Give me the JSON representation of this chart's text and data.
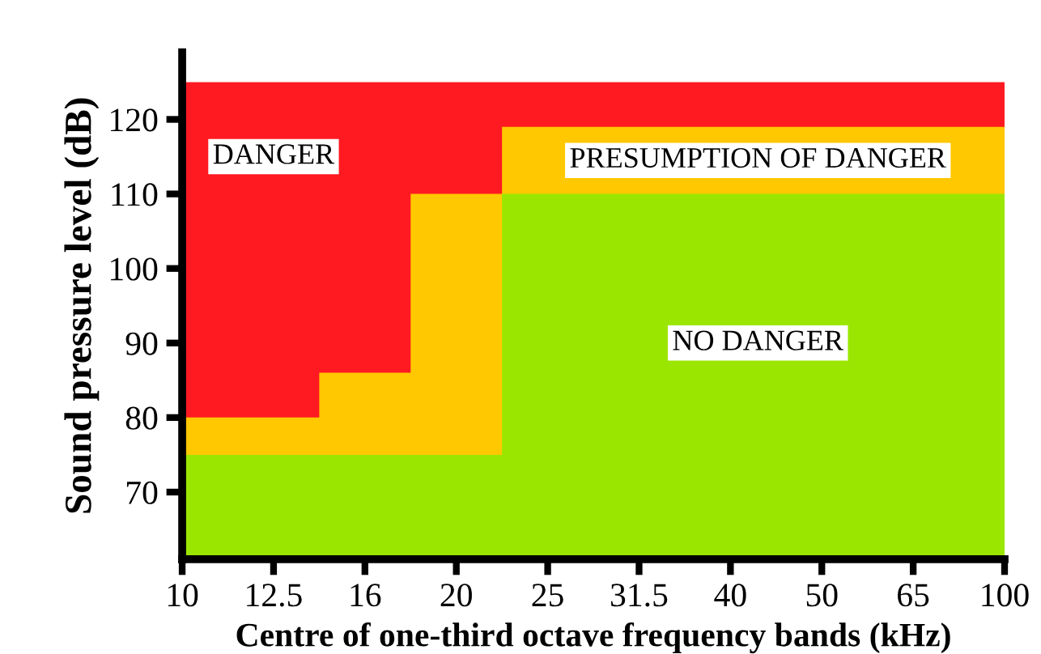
{
  "chart_data": {
    "type": "area",
    "xlabel": "Centre of one-third octave frequency bands (kHz)",
    "ylabel": "Sound pressure level (dB)",
    "categories": [
      "10",
      "12.5",
      "16",
      "20",
      "25",
      "31.5",
      "40",
      "50",
      "65",
      "100"
    ],
    "series": [
      {
        "name": "DANGER",
        "color": "#ff1a22",
        "values": [
          125,
          125,
          125,
          125,
          125,
          125,
          125,
          125,
          125,
          125
        ]
      },
      {
        "name": "PRESUMPTION OF DANGER",
        "color": "#ffc800",
        "values": [
          80,
          80,
          86,
          110,
          119,
          119,
          119,
          119,
          119,
          119
        ]
      },
      {
        "name": "NO DANGER",
        "color": "#9be600",
        "values": [
          75,
          75,
          75,
          75,
          110,
          110,
          110,
          110,
          110,
          110
        ]
      }
    ],
    "ylim": [
      61,
      129
    ],
    "yticks": [
      70,
      80,
      90,
      100,
      110,
      120
    ],
    "grid": false,
    "legend": false
  }
}
